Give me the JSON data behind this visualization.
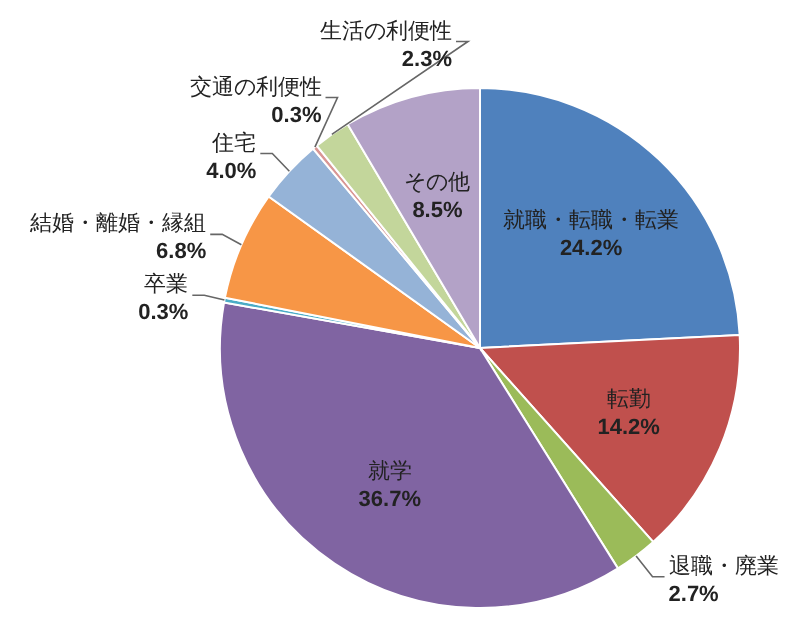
{
  "chart_data": {
    "type": "pie",
    "categories": [
      "就職・転職・転業",
      "転勤",
      "退職・廃業",
      "就学",
      "卒業",
      "結婚・離婚・縁組",
      "住宅",
      "交通の利便性",
      "生活の利便性",
      "その他"
    ],
    "values": [
      24.2,
      14.2,
      2.7,
      36.7,
      0.3,
      6.8,
      4.0,
      0.3,
      2.3,
      8.5
    ],
    "value_labels": [
      "24.2%",
      "14.2%",
      "2.7%",
      "36.7%",
      "0.3%",
      "6.8%",
      "4.0%",
      "0.3%",
      "2.3%",
      "8.5%"
    ],
    "colors": [
      "#4f81bd",
      "#c0504d",
      "#9bbb59",
      "#8064a2",
      "#4bacc6",
      "#f79646",
      "#95b3d7",
      "#d99694",
      "#c3d69b",
      "#b3a2c7"
    ]
  }
}
